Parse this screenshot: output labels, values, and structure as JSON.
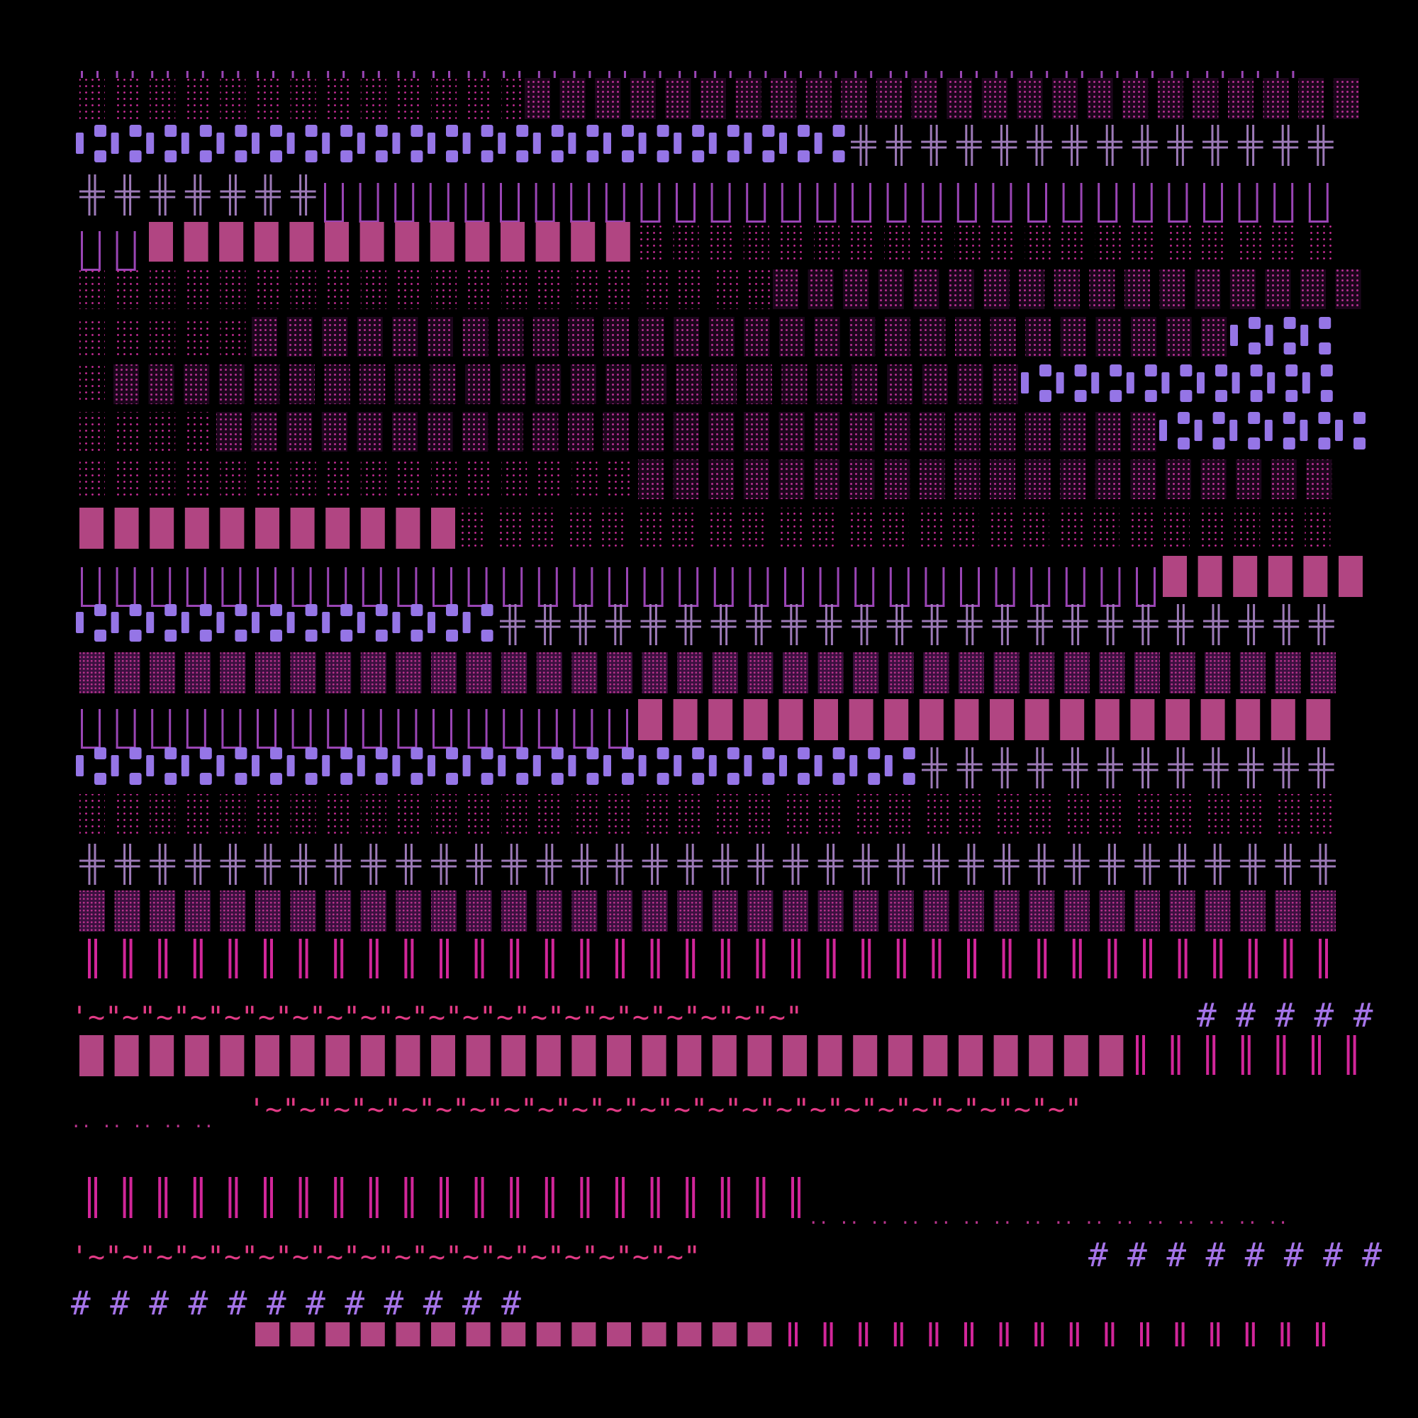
{
  "image": {
    "background_color": "#000000",
    "description_free": true
  },
  "palette": {
    "pink_block": "#b14582",
    "pink_dots": "#cc2d9a",
    "violet_blocks": "#9575e6",
    "lavender_cross": "#9d7ab8",
    "purple_bars": "#9a45b5",
    "magenta_bars": "#d2269a",
    "hash_violet": "#a574e8",
    "tilde_pink": "#e03a85"
  },
  "text_glyphs": {
    "tilde_pattern": "'~\"~\"~\"~\"~\"~\"~\"~\"~\"~\"~\"~\"~\"~\"~\"~\"~\"~\"~\"~\"~\"~\"~\"~\"~\"~\"~\"~\"~\"~",
    "hash_pattern": "# # # # # # # # # # #",
    "dots_pattern": ".. .. .. .. .. .. .. .."
  },
  "icons": [
    "dotted-tile-icon",
    "dense-tile-icon",
    "solid-block-icon",
    "chain-link-icon",
    "double-cross-icon",
    "vertical-bars-icon",
    "double-bar-icon",
    "tilde-icon",
    "hash-icon",
    "dot-pair-icon"
  ]
}
